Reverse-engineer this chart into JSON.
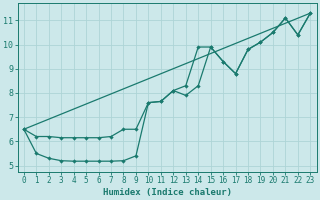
{
  "xlabel": "Humidex (Indice chaleur)",
  "bg_color": "#cce8ea",
  "grid_color": "#aed4d6",
  "line_color": "#1a7a6e",
  "spine_color": "#1a7a6e",
  "xlim": [
    -0.5,
    23.5
  ],
  "ylim": [
    4.75,
    11.7
  ],
  "xticks": [
    0,
    1,
    2,
    3,
    4,
    5,
    6,
    7,
    8,
    9,
    10,
    11,
    12,
    13,
    14,
    15,
    16,
    17,
    18,
    19,
    20,
    21,
    22,
    23
  ],
  "yticks": [
    5,
    6,
    7,
    8,
    9,
    10,
    11
  ],
  "line1_x": [
    0,
    1,
    2,
    3,
    4,
    5,
    6,
    7,
    8,
    9,
    10,
    11,
    12,
    13,
    14,
    15,
    16,
    17,
    18,
    19,
    20,
    21,
    22,
    23
  ],
  "line1_y": [
    6.5,
    6.2,
    6.2,
    6.15,
    6.15,
    6.15,
    6.15,
    6.2,
    6.5,
    6.5,
    7.6,
    7.65,
    8.1,
    8.3,
    9.9,
    9.9,
    9.3,
    8.8,
    9.8,
    10.1,
    10.5,
    11.1,
    10.4,
    11.3
  ],
  "line2_x": [
    0,
    1,
    2,
    3,
    4,
    5,
    6,
    7,
    8,
    9,
    10,
    11,
    12,
    13,
    14,
    15,
    16,
    17,
    18,
    19,
    20,
    21,
    22,
    23
  ],
  "line2_y": [
    6.5,
    5.5,
    5.3,
    5.2,
    5.18,
    5.18,
    5.18,
    5.18,
    5.2,
    5.4,
    7.6,
    7.65,
    8.1,
    7.9,
    8.3,
    9.9,
    9.3,
    8.8,
    9.8,
    10.1,
    10.5,
    11.1,
    10.4,
    11.3
  ],
  "line3_x": [
    0,
    23
  ],
  "line3_y": [
    6.5,
    11.3
  ],
  "marker": "D",
  "markersize": 2.2,
  "linewidth": 0.9,
  "tick_fontsize": 5.5,
  "xlabel_fontsize": 6.5
}
